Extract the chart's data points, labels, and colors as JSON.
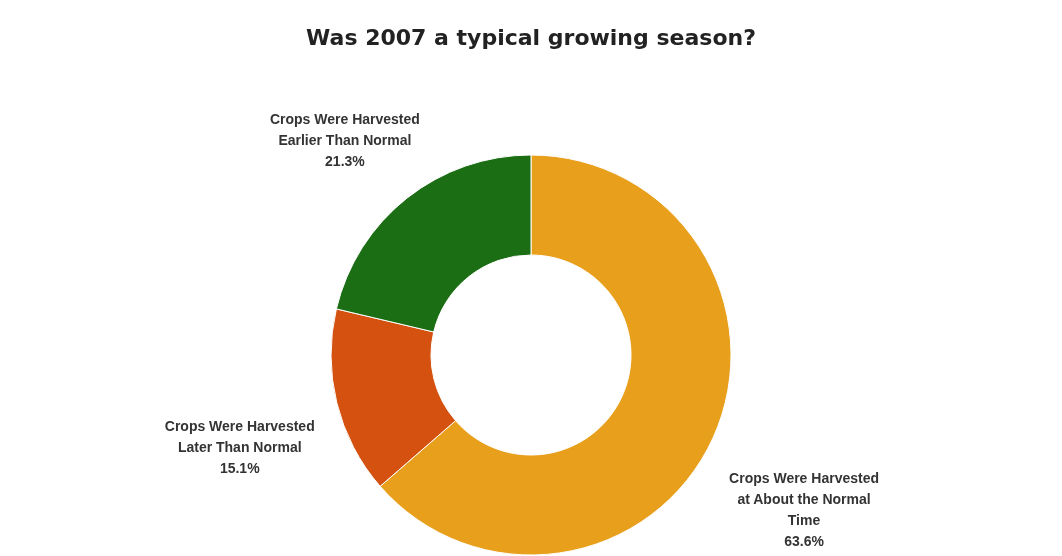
{
  "chart_data": {
    "type": "donut",
    "title": "Was 2007 a typical growing season?",
    "categories": [
      "Crops Were Harvested at About the Normal Time",
      "Crops Were Harvested Later Than Normal",
      "Crops Were Harvested Earlier Than Normal"
    ],
    "values": [
      63.6,
      15.1,
      21.3
    ],
    "colors": [
      "#e8a01c",
      "#d4510f",
      "#1b6e14"
    ],
    "value_labels": [
      "63.6%",
      "15.1%",
      "21.3%"
    ],
    "legend": false
  }
}
